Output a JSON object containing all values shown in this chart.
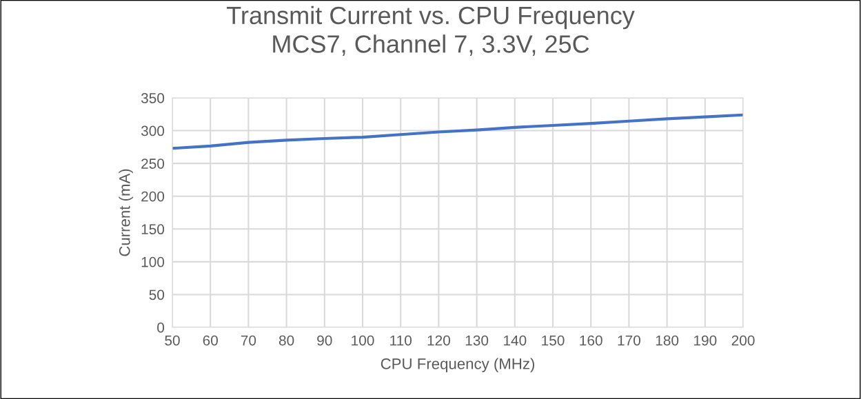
{
  "chart_data": {
    "type": "line",
    "title": "Transmit Current vs. CPU Frequency\nMCS7, Channel 7, 3.3V, 25C",
    "xlabel": "CPU Frequency (MHz)",
    "ylabel": "Current (mA)",
    "x": [
      50,
      60,
      70,
      80,
      90,
      100,
      110,
      120,
      130,
      140,
      150,
      160,
      170,
      180,
      190,
      200
    ],
    "series": [
      {
        "color": "#4472c4",
        "values": [
          273,
          276.5,
          282,
          285.5,
          288,
          290,
          294,
          298,
          301,
          305,
          308,
          311,
          314.5,
          318,
          321,
          324
        ]
      }
    ],
    "xlim": [
      50,
      200
    ],
    "xticks": [
      50,
      60,
      70,
      80,
      90,
      100,
      110,
      120,
      130,
      140,
      150,
      160,
      170,
      180,
      190,
      200
    ],
    "ylim": [
      0,
      350
    ],
    "yticks": [
      0,
      50,
      100,
      150,
      200,
      250,
      300,
      350
    ],
    "grid": true,
    "legend": false,
    "marker": "none",
    "line_style": "solid"
  }
}
